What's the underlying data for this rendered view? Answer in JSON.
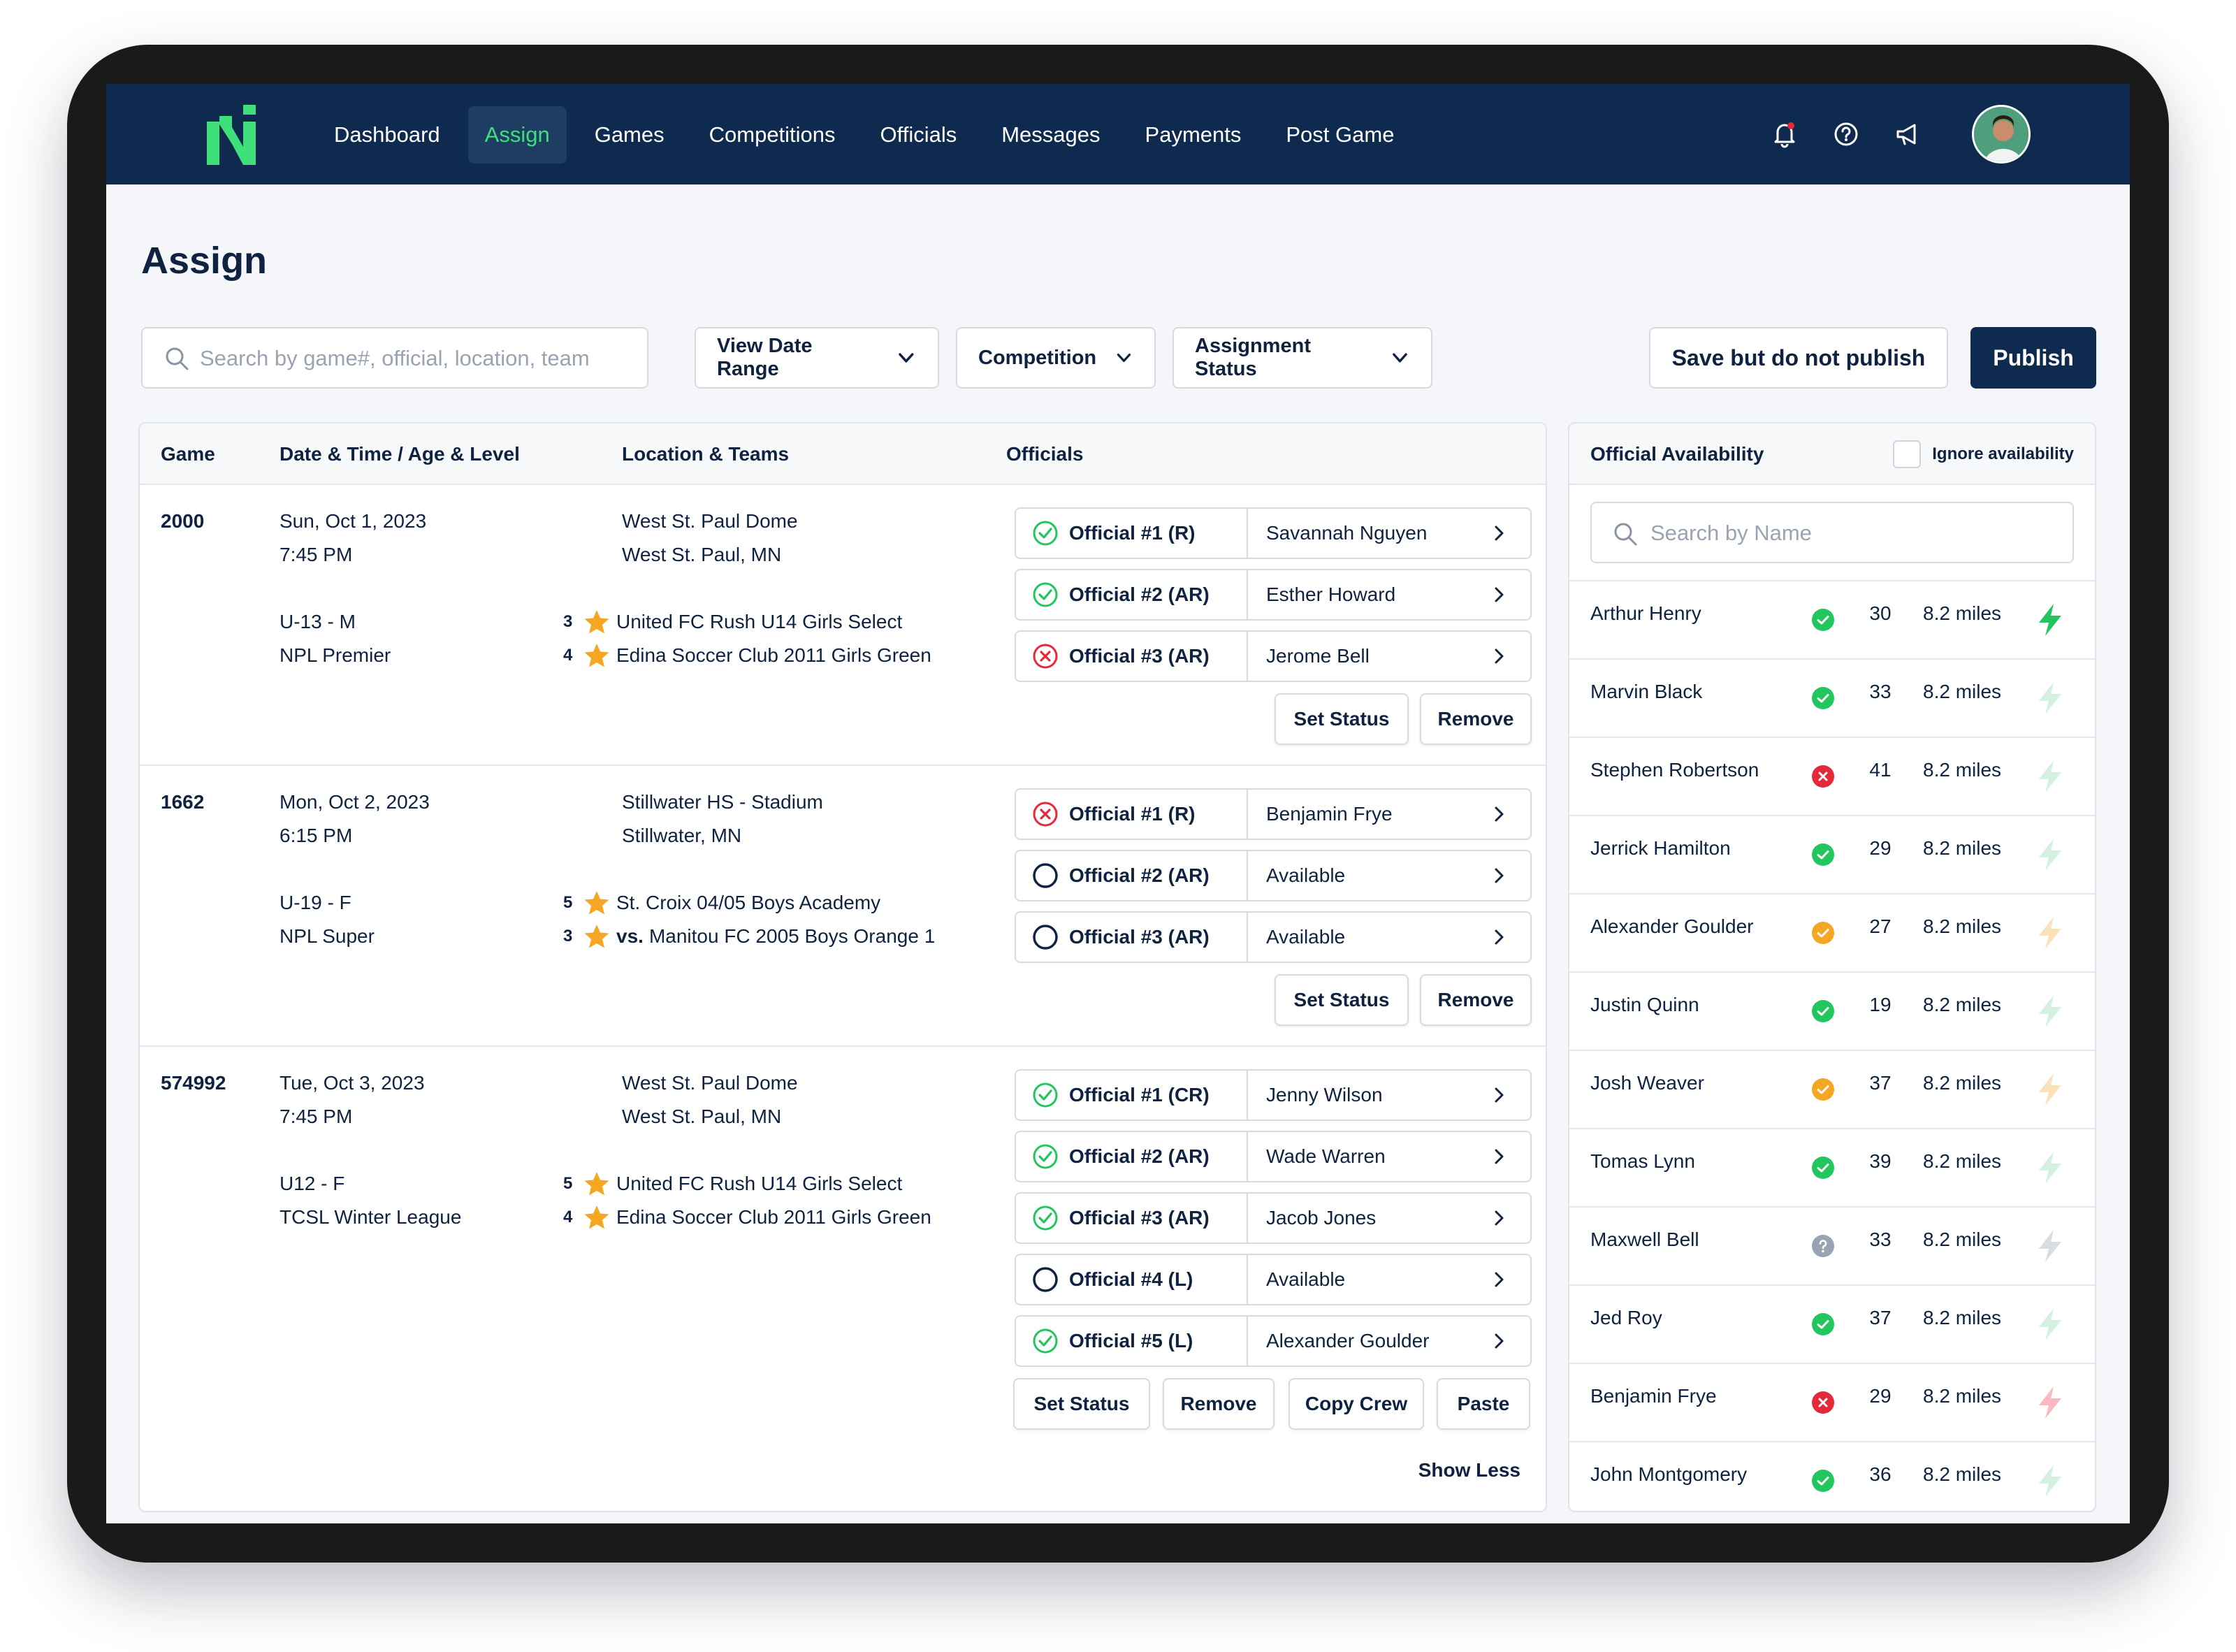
{
  "nav": {
    "items": [
      "Dashboard",
      "Assign",
      "Games",
      "Competitions",
      "Officials",
      "Messages",
      "Payments",
      "Post Game"
    ],
    "active": "Assign",
    "icons": [
      "bell-icon",
      "help-icon",
      "megaphone-icon"
    ]
  },
  "page": {
    "title": "Assign"
  },
  "toolbar": {
    "search_placeholder": "Search by game#, official, location, team",
    "date_range": "View Date Range",
    "competition": "Competition",
    "assignment_status": "Assignment Status",
    "save_label": "Save but do not publish",
    "publish_label": "Publish"
  },
  "table": {
    "headers": [
      "Game",
      "Date & Time / Age & Level",
      "Location & Teams",
      "Officials"
    ],
    "games": [
      {
        "id": "2000",
        "date": "Sun, Oct 1, 2023",
        "time": "7:45 PM",
        "age": "U-13 - M",
        "level": "NPL Premier",
        "venue": "West St. Paul Dome",
        "city": "West St. Paul, MN",
        "teams": [
          {
            "rank": "3",
            "vs": "",
            "name": "United FC Rush U14 Girls Select"
          },
          {
            "rank": "4",
            "vs": "",
            "name": "Edina Soccer Club 2011 Girls Green"
          }
        ],
        "officials": [
          {
            "role": "Official #1 (R)",
            "name": "Savannah Nguyen",
            "status": "accepted"
          },
          {
            "role": "Official #2 (AR)",
            "name": "Esther Howard",
            "status": "accepted"
          },
          {
            "role": "Official #3 (AR)",
            "name": "Jerome Bell",
            "status": "declined"
          }
        ],
        "actions": [
          "Set Status",
          "Remove"
        ]
      },
      {
        "id": "1662",
        "date": "Mon, Oct 2, 2023",
        "time": "6:15 PM",
        "age": "U-19 - F",
        "level": "NPL Super",
        "venue": "Stillwater HS - Stadium",
        "city": "Stillwater, MN",
        "teams": [
          {
            "rank": "5",
            "vs": "",
            "name": "St. Croix 04/05 Boys Academy"
          },
          {
            "rank": "3",
            "vs": "vs.",
            "name": "Manitou FC 2005 Boys Orange 1"
          }
        ],
        "officials": [
          {
            "role": "Official #1 (R)",
            "name": "Benjamin Frye",
            "status": "declined"
          },
          {
            "role": "Official #2 (AR)",
            "name": "Available",
            "status": "open"
          },
          {
            "role": "Official #3 (AR)",
            "name": "Available",
            "status": "open"
          }
        ],
        "actions": [
          "Set Status",
          "Remove"
        ]
      },
      {
        "id": "574992",
        "date": "Tue, Oct 3, 2023",
        "time": "7:45 PM",
        "age": "U12 - F",
        "level": "TCSL Winter League",
        "venue": "West St. Paul Dome",
        "city": "West St. Paul, MN",
        "teams": [
          {
            "rank": "5",
            "vs": "",
            "name": "United FC Rush U14 Girls Select"
          },
          {
            "rank": "4",
            "vs": "",
            "name": "Edina Soccer Club 2011 Girls Green"
          }
        ],
        "officials": [
          {
            "role": "Official #1 (CR)",
            "name": "Jenny Wilson",
            "status": "accepted"
          },
          {
            "role": "Official #2 (AR)",
            "name": "Wade Warren",
            "status": "accepted"
          },
          {
            "role": "Official #3 (AR)",
            "name": "Jacob Jones",
            "status": "accepted"
          },
          {
            "role": "Official #4 (L)",
            "name": "Available",
            "status": "open"
          },
          {
            "role": "Official #5 (L)",
            "name": "Alexander Goulder",
            "status": "accepted"
          }
        ],
        "actions": [
          "Set Status",
          "Remove",
          "Copy Crew",
          "Paste"
        ]
      }
    ],
    "show_less": "Show Less"
  },
  "availability": {
    "title": "Official Availability",
    "ignore_label": "Ignore availability",
    "search_placeholder": "Search by Name",
    "officials": [
      {
        "name": "Arthur Henry",
        "status": "available",
        "age": "30",
        "distance": "8.2 miles",
        "bolt": "active"
      },
      {
        "name": "Marvin Black",
        "status": "available",
        "age": "33",
        "distance": "8.2 miles",
        "bolt": "green"
      },
      {
        "name": "Stephen Robertson",
        "status": "unavailable",
        "age": "41",
        "distance": "8.2 miles",
        "bolt": "green"
      },
      {
        "name": "Jerrick Hamilton",
        "status": "available",
        "age": "29",
        "distance": "8.2 miles",
        "bolt": "green"
      },
      {
        "name": "Alexander Goulder",
        "status": "partial",
        "age": "27",
        "distance": "8.2 miles",
        "bolt": "orange"
      },
      {
        "name": "Justin Quinn",
        "status": "available",
        "age": "19",
        "distance": "8.2 miles",
        "bolt": "green"
      },
      {
        "name": "Josh Weaver",
        "status": "partial",
        "age": "37",
        "distance": "8.2 miles",
        "bolt": "orange"
      },
      {
        "name": "Tomas Lynn",
        "status": "available",
        "age": "39",
        "distance": "8.2 miles",
        "bolt": "green"
      },
      {
        "name": "Maxwell Bell",
        "status": "unknown",
        "age": "33",
        "distance": "8.2 miles",
        "bolt": "gray"
      },
      {
        "name": "Jed Roy",
        "status": "available",
        "age": "37",
        "distance": "8.2 miles",
        "bolt": "green"
      },
      {
        "name": "Benjamin Frye",
        "status": "unavailable",
        "age": "29",
        "distance": "8.2 miles",
        "bolt": "red"
      },
      {
        "name": "John Montgomery",
        "status": "available",
        "age": "36",
        "distance": "8.2 miles",
        "bolt": "green"
      }
    ]
  },
  "colors": {
    "navy": "#0e2a4f",
    "accent_green": "#3fe07a",
    "success": "#22c55e",
    "danger": "#e5283a",
    "warning": "#f5a623",
    "star": "#f5a623",
    "muted": "#9aa3b2"
  }
}
